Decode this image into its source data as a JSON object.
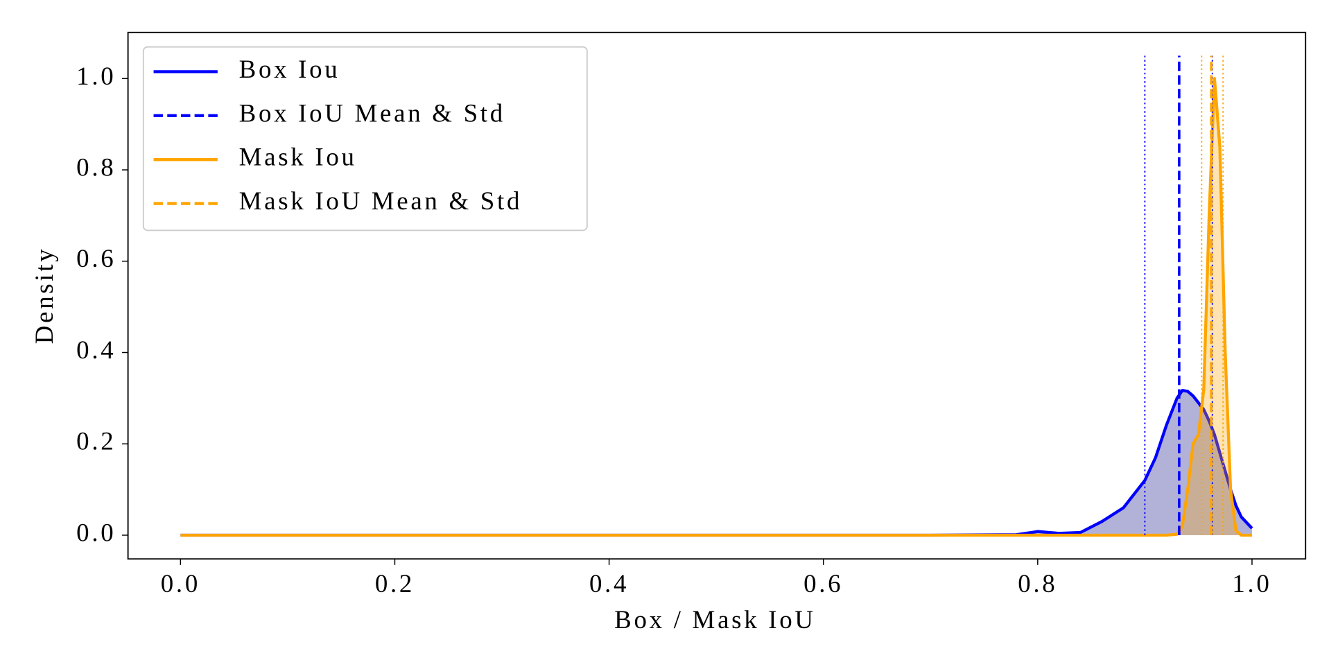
{
  "chart_data": {
    "type": "line",
    "xlabel": "Box / Mask IoU",
    "ylabel": "Density",
    "x": [
      0,
      0.1,
      0.2,
      0.3,
      0.4,
      0.5,
      0.6,
      0.7,
      0.78,
      0.8,
      0.82,
      0.84,
      0.86,
      0.88,
      0.9,
      0.91,
      0.92,
      0.93,
      0.935,
      0.94,
      0.945,
      0.95,
      0.955,
      0.96,
      0.965,
      0.97,
      0.975,
      0.98,
      0.985,
      0.99,
      1.0
    ],
    "series": [
      {
        "name": "Box Iou",
        "color": "#0000ff",
        "fill": "#000080",
        "values": [
          0,
          0,
          0,
          0,
          0,
          0,
          0,
          0,
          0.001,
          0.008,
          0.004,
          0.006,
          0.03,
          0.06,
          0.12,
          0.17,
          0.24,
          0.3,
          0.317,
          0.315,
          0.305,
          0.29,
          0.275,
          0.25,
          0.22,
          0.18,
          0.14,
          0.1,
          0.065,
          0.04,
          0.015
        ]
      },
      {
        "name": "Mask Iou",
        "color": "#ffa500",
        "fill": "#ffa500",
        "values": [
          0,
          0,
          0,
          0,
          0,
          0,
          0,
          0,
          0,
          0,
          0,
          0,
          0,
          0,
          0,
          0,
          0,
          0.002,
          0.02,
          0.1,
          0.2,
          0.22,
          0.32,
          0.7,
          1.0,
          0.85,
          0.4,
          0.1,
          0.01,
          0,
          0
        ]
      }
    ],
    "fill_opacity": 0.3,
    "reference_lines": [
      {
        "name": "Box IoU Mean & Std",
        "color": "#0000ff",
        "mean": 0.932,
        "std_bounds": [
          0.9,
          0.963
        ],
        "extent": [
          0,
          1.05
        ]
      },
      {
        "name": "Mask IoU Mean & Std",
        "color": "#ffa500",
        "mean": 0.962,
        "std_bounds": [
          0.953,
          0.973
        ],
        "extent": [
          0,
          1.05
        ]
      }
    ],
    "xlim": [
      -0.049,
      1.05
    ],
    "ylim": [
      -0.052,
      1.101
    ],
    "xticks": [
      {
        "value": 0,
        "label": "0.0"
      },
      {
        "value": 0.2,
        "label": "0.2"
      },
      {
        "value": 0.4,
        "label": "0.4"
      },
      {
        "value": 0.6,
        "label": "0.6"
      },
      {
        "value": 0.8,
        "label": "0.8"
      },
      {
        "value": 1,
        "label": "1.0"
      }
    ],
    "yticks": [
      {
        "value": 0,
        "label": "0.0"
      },
      {
        "value": 0.2,
        "label": "0.2"
      },
      {
        "value": 0.4,
        "label": "0.4"
      },
      {
        "value": 0.6,
        "label": "0.6"
      },
      {
        "value": 0.8,
        "label": "0.8"
      },
      {
        "value": 1,
        "label": "1.0"
      }
    ],
    "legend": "upper left"
  }
}
